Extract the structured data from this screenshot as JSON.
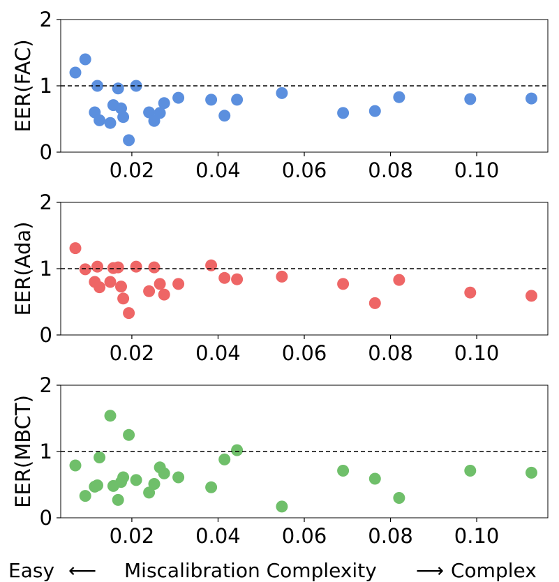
{
  "chart_data": [
    {
      "type": "scatter",
      "ylabel": "EER(FAC)",
      "color": "#5b8fde",
      "ylim": [
        0,
        2
      ],
      "xlim": [
        0.0035,
        0.1165
      ],
      "xticks": [
        "0.02",
        "0.04",
        "0.06",
        "0.08",
        "0.10"
      ],
      "yticks": [
        "0",
        "1",
        "2"
      ],
      "reference_line": 1,
      "points": [
        [
          0.0069,
          1.2
        ],
        [
          0.0092,
          1.4
        ],
        [
          0.0114,
          0.6
        ],
        [
          0.012,
          1.0
        ],
        [
          0.0125,
          0.48
        ],
        [
          0.015,
          0.44
        ],
        [
          0.0157,
          0.71
        ],
        [
          0.0168,
          0.96
        ],
        [
          0.0175,
          0.66
        ],
        [
          0.018,
          0.53
        ],
        [
          0.0193,
          0.18
        ],
        [
          0.021,
          1.0
        ],
        [
          0.024,
          0.6
        ],
        [
          0.0252,
          0.47
        ],
        [
          0.0265,
          0.59
        ],
        [
          0.0275,
          0.74
        ],
        [
          0.0308,
          0.82
        ],
        [
          0.0384,
          0.79
        ],
        [
          0.0415,
          0.55
        ],
        [
          0.0444,
          0.79
        ],
        [
          0.0548,
          0.89
        ],
        [
          0.069,
          0.59
        ],
        [
          0.0764,
          0.62
        ],
        [
          0.082,
          0.83
        ],
        [
          0.0985,
          0.8
        ],
        [
          0.1127,
          0.81
        ]
      ]
    },
    {
      "type": "scatter",
      "ylabel": "EER(Ada)",
      "color": "#ee6666",
      "ylim": [
        0,
        2
      ],
      "xlim": [
        0.0035,
        0.1165
      ],
      "xticks": [
        "0.02",
        "0.04",
        "0.06",
        "0.08",
        "0.10"
      ],
      "yticks": [
        "0",
        "1",
        "2"
      ],
      "reference_line": 1,
      "points": [
        [
          0.0069,
          1.31
        ],
        [
          0.0092,
          0.99
        ],
        [
          0.0114,
          0.8
        ],
        [
          0.012,
          1.03
        ],
        [
          0.0125,
          0.72
        ],
        [
          0.015,
          0.8
        ],
        [
          0.0157,
          1.01
        ],
        [
          0.0168,
          1.02
        ],
        [
          0.0175,
          0.73
        ],
        [
          0.018,
          0.55
        ],
        [
          0.0193,
          0.33
        ],
        [
          0.021,
          1.03
        ],
        [
          0.024,
          0.66
        ],
        [
          0.0252,
          1.02
        ],
        [
          0.0265,
          0.77
        ],
        [
          0.0275,
          0.61
        ],
        [
          0.0308,
          0.77
        ],
        [
          0.0384,
          1.05
        ],
        [
          0.0415,
          0.86
        ],
        [
          0.0444,
          0.84
        ],
        [
          0.0548,
          0.88
        ],
        [
          0.069,
          0.77
        ],
        [
          0.0764,
          0.48
        ],
        [
          0.082,
          0.83
        ],
        [
          0.0985,
          0.64
        ],
        [
          0.1127,
          0.59
        ]
      ]
    },
    {
      "type": "scatter",
      "ylabel": "EER(MBCT)",
      "color": "#6fbf6a",
      "ylim": [
        0,
        2
      ],
      "xlim": [
        0.0035,
        0.1165
      ],
      "xticks": [
        "0.02",
        "0.04",
        "0.06",
        "0.08",
        "0.10"
      ],
      "yticks": [
        "0",
        "1",
        "2"
      ],
      "reference_line": 1,
      "points": [
        [
          0.0069,
          0.79
        ],
        [
          0.0092,
          0.33
        ],
        [
          0.0114,
          0.47
        ],
        [
          0.012,
          0.49
        ],
        [
          0.0125,
          0.91
        ],
        [
          0.015,
          1.54
        ],
        [
          0.0157,
          0.48
        ],
        [
          0.0168,
          0.27
        ],
        [
          0.0175,
          0.54
        ],
        [
          0.018,
          0.61
        ],
        [
          0.0193,
          1.25
        ],
        [
          0.021,
          0.57
        ],
        [
          0.024,
          0.38
        ],
        [
          0.0252,
          0.51
        ],
        [
          0.0265,
          0.76
        ],
        [
          0.0275,
          0.67
        ],
        [
          0.0308,
          0.61
        ],
        [
          0.0384,
          0.46
        ],
        [
          0.0415,
          0.88
        ],
        [
          0.0444,
          1.02
        ],
        [
          0.0548,
          0.17
        ],
        [
          0.069,
          0.71
        ],
        [
          0.0764,
          0.59
        ],
        [
          0.082,
          0.3
        ],
        [
          0.0985,
          0.71
        ],
        [
          0.1127,
          0.68
        ]
      ]
    }
  ],
  "footer": {
    "left": "Easy",
    "middle": "Miscalibration Complexity",
    "right": "Complex",
    "left_arrow": "⟵",
    "right_arrow": "⟶"
  }
}
